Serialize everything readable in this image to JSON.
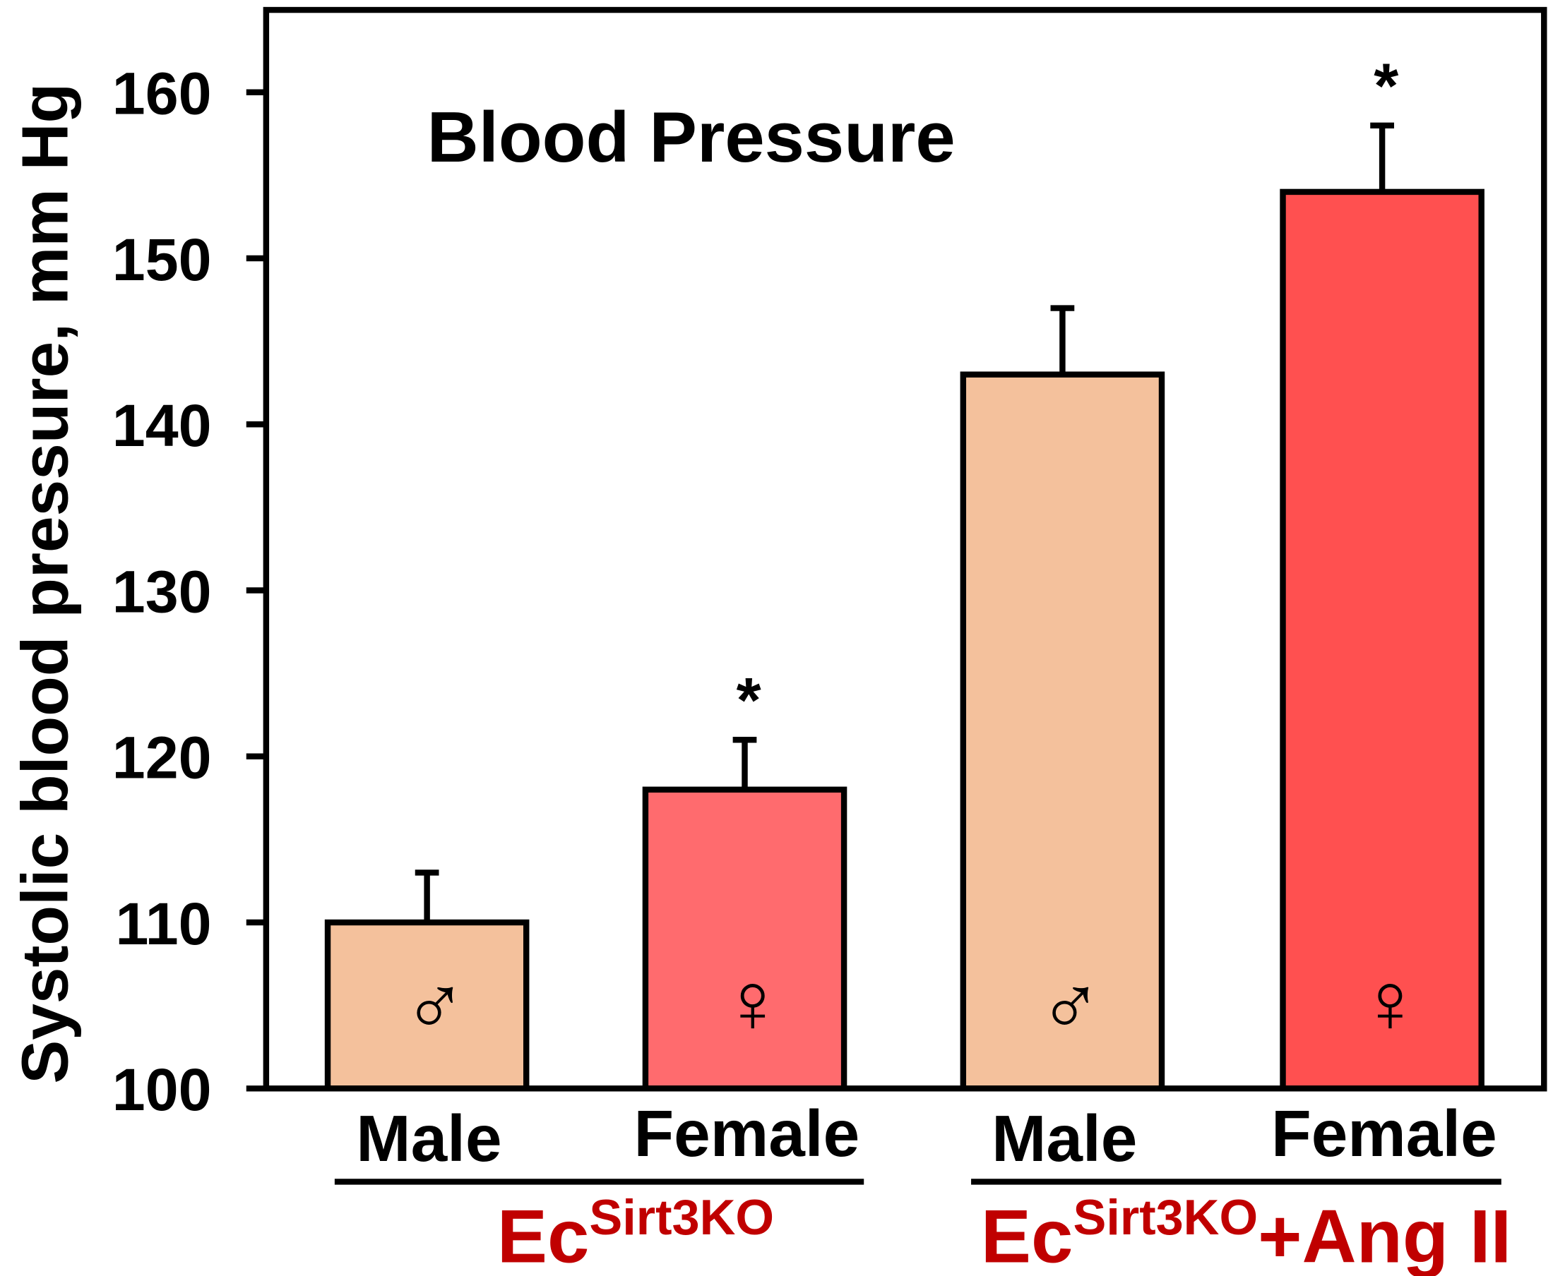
{
  "chart_data": {
    "type": "bar",
    "title": "Blood Pressure",
    "ylabel": "Systolic blood pressure, mm Hg",
    "xlabel": "",
    "ylim": [
      100,
      165
    ],
    "yticks": [
      100,
      110,
      120,
      130,
      140,
      150,
      160
    ],
    "grid": false,
    "categories": [
      "Male",
      "Female",
      "Male",
      "Female"
    ],
    "sex_symbols": [
      "♂",
      "♀",
      "♂",
      "♀"
    ],
    "values": [
      110,
      118,
      143,
      154
    ],
    "error_upper": [
      3,
      3,
      4,
      4
    ],
    "significance": [
      "",
      "*",
      "",
      "*"
    ],
    "bar_colors": [
      "#F4C19C",
      "#FF6B6E",
      "#F4C19C",
      "#FF5050"
    ],
    "groups": [
      {
        "base": "Ec",
        "sup": "Sirt3KO",
        "suffix": "",
        "members": [
          0,
          1
        ]
      },
      {
        "base": "Ec",
        "sup": "Sirt3KO",
        "suffix": "+Ang II",
        "members": [
          2,
          3
        ]
      }
    ],
    "group_label_color": "#C00000"
  }
}
